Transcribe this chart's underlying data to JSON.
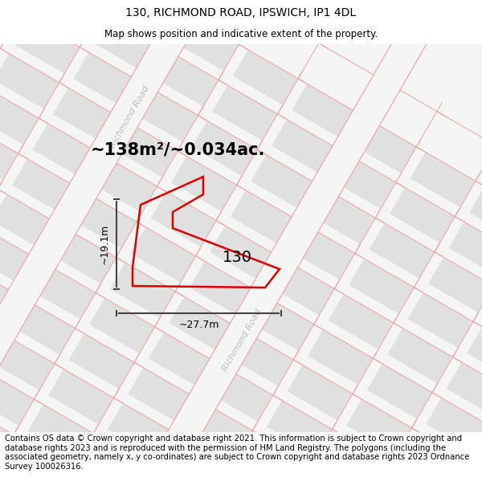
{
  "title": "130, RICHMOND ROAD, IPSWICH, IP1 4DL",
  "subtitle": "Map shows position and indicative extent of the property.",
  "footer": "Contains OS data © Crown copyright and database right 2021. This information is subject to Crown copyright and database rights 2023 and is reproduced with the permission of HM Land Registry. The polygons (including the associated geometry, namely x, y co-ordinates) are subject to Crown copyright and database rights 2023 Ordnance Survey 100026316.",
  "area_label": "~138m²/~0.034ac.",
  "width_label": "~27.7m",
  "height_label": "~19.1m",
  "property_number": "130",
  "map_bg": "#f5f5f5",
  "block_color": "#e0e0e0",
  "block_edge_color": "#cccccc",
  "red_line_color": "#dd0000",
  "pink_line_color": "#f0a0a0",
  "road_fill": "#f5f5f5",
  "road_label_color": "#bbbbbb",
  "dim_line_color": "#444444",
  "title_fontsize": 10,
  "subtitle_fontsize": 8.5,
  "footer_fontsize": 7.2,
  "area_fontsize": 15,
  "prop_num_fontsize": 14,
  "dim_fontsize": 9,
  "road_label_fontsize": 8
}
